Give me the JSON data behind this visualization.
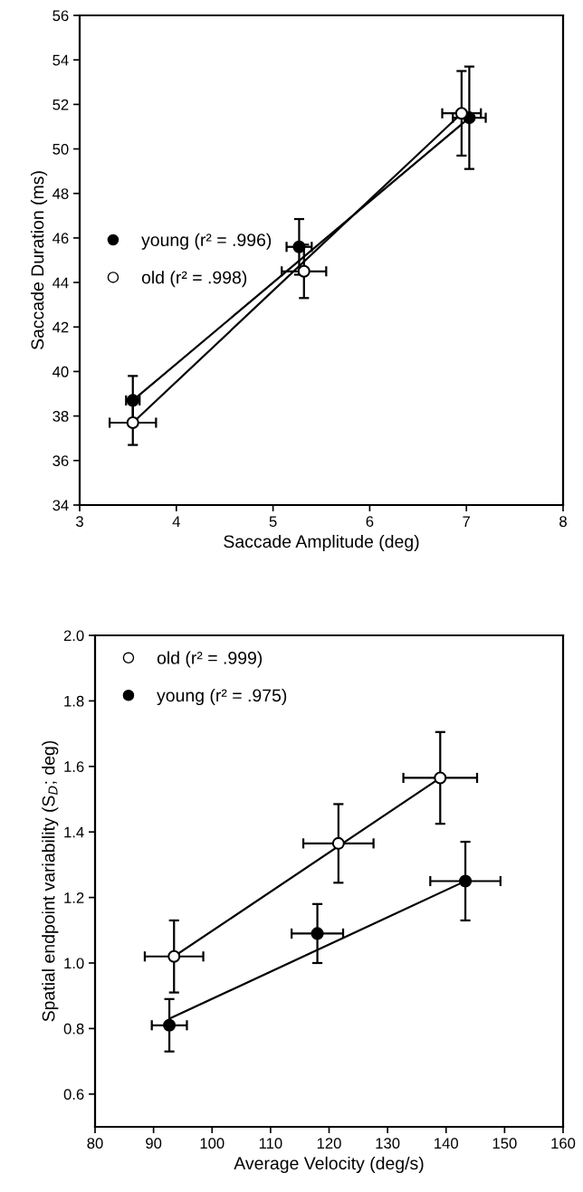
{
  "chart_data": [
    {
      "type": "scatter",
      "xlabel": "Saccade Amplitude (deg)",
      "ylabel": "Saccade Duration (ms)",
      "xlim": [
        3,
        8
      ],
      "ylim": [
        34,
        56
      ],
      "xticks": [
        3,
        4,
        5,
        6,
        7,
        8
      ],
      "yticks": [
        34,
        36,
        38,
        40,
        42,
        44,
        46,
        48,
        50,
        52,
        54,
        56
      ],
      "grid": false,
      "legend": "center left",
      "series": [
        {
          "name": "young (r² = .996)",
          "color": "#000000",
          "marker": "circle",
          "x": [
            3.55,
            5.27,
            7.03
          ],
          "values": [
            38.7,
            45.6,
            51.4
          ],
          "errors": [
            1.1,
            1.25,
            2.3
          ],
          "xerrors": [
            0.07,
            0.13,
            0.17
          ]
        },
        {
          "name": "old (r² = .998)",
          "color": "#ffffff",
          "marker": "circle",
          "x": [
            3.55,
            5.32,
            6.95
          ],
          "values": [
            37.7,
            44.5,
            51.6
          ],
          "errors": [
            1.0,
            1.2,
            1.9
          ],
          "xerrors": [
            0.24,
            0.23,
            0.2
          ]
        },
        {
          "type": "line",
          "color": "#000000",
          "x": [
            3.55,
            7.03
          ],
          "values": [
            38.7,
            51.4
          ]
        },
        {
          "type": "line",
          "color": "#000000",
          "x": [
            3.55,
            6.95
          ],
          "values": [
            37.7,
            51.6
          ]
        }
      ]
    },
    {
      "type": "scatter",
      "xlabel": "Average Velocity (deg/s)",
      "ylabel": "Spatial endpoint variability (S$_{D}$; deg)",
      "xlim": [
        80,
        160
      ],
      "ylim": [
        0.5,
        2.0
      ],
      "xticks": [
        80,
        90,
        100,
        110,
        120,
        130,
        140,
        150,
        160
      ],
      "yticks": [
        0.6,
        0.8,
        {
          "value": 1,
          "label": "1.0"
        },
        1.2,
        1.4,
        1.6,
        1.8,
        {
          "value": 2,
          "label": "2.0"
        }
      ],
      "grid": false,
      "legend": "upper left",
      "series": [
        {
          "name": "old (r² = .999)",
          "color": "#ffffff",
          "marker": "circle",
          "x": [
            93.5,
            121.6,
            139.0
          ],
          "values": [
            1.02,
            1.365,
            1.565
          ],
          "errors": [
            0.11,
            0.12,
            0.14
          ],
          "xerrors": [
            5,
            6,
            6.3
          ]
        },
        {
          "name": "young (r² = .975)",
          "color": "#000000",
          "marker": "circle",
          "x": [
            92.7,
            118.0,
            143.3
          ],
          "values": [
            0.81,
            1.09,
            1.25
          ],
          "errors": [
            0.08,
            0.09,
            0.12
          ],
          "xerrors": [
            3,
            4.4,
            6
          ]
        },
        {
          "type": "line",
          "color": "#000000",
          "x": [
            93.5,
            139.0
          ],
          "values": [
            1.02,
            1.565
          ]
        },
        {
          "type": "line",
          "color": "#000000",
          "x": [
            92.7,
            143.3
          ],
          "values": [
            0.83,
            1.25
          ]
        }
      ]
    }
  ]
}
